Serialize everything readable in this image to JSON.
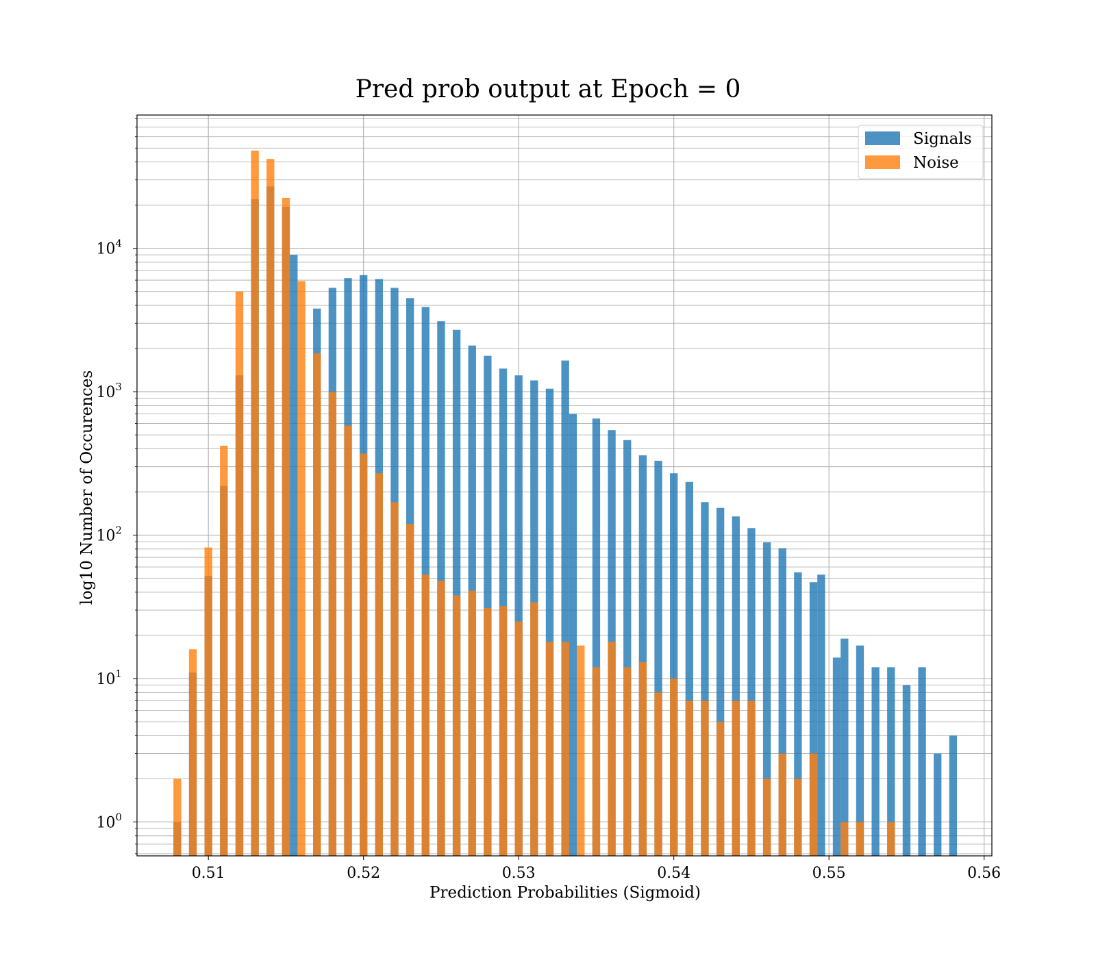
{
  "chart_data": {
    "type": "bar",
    "title": "Pred prob output at Epoch = 0",
    "xlabel": "Prediction Probabilities (Sigmoid)",
    "ylabel": "log10 Number of Occurences",
    "xlim": [
      0.5054,
      0.5605
    ],
    "ylim": [
      0.58,
      85000
    ],
    "yscale": "log",
    "grid": true,
    "grid_minor": true,
    "legend": "top-right",
    "bar_width": 0.0005,
    "xticks": [
      {
        "value": 0.51,
        "label": "0.51"
      },
      {
        "value": 0.52,
        "label": "0.52"
      },
      {
        "value": 0.53,
        "label": "0.53"
      },
      {
        "value": 0.54,
        "label": "0.54"
      },
      {
        "value": 0.55,
        "label": "0.55"
      },
      {
        "value": 0.56,
        "label": "0.56"
      }
    ],
    "yticks": [
      {
        "value": 1,
        "base": "10",
        "exp": "0"
      },
      {
        "value": 10,
        "base": "10",
        "exp": "1"
      },
      {
        "value": 100,
        "base": "10",
        "exp": "2"
      },
      {
        "value": 1000,
        "base": "10",
        "exp": "3"
      },
      {
        "value": 10000,
        "base": "10",
        "exp": "4"
      }
    ],
    "series": [
      {
        "name": "Signals",
        "color": "#1f77b4",
        "opacity": 0.8,
        "x": [
          0.508,
          0.509,
          0.51,
          0.511,
          0.512,
          0.513,
          0.514,
          0.515,
          0.5155,
          0.517,
          0.518,
          0.519,
          0.52,
          0.521,
          0.522,
          0.523,
          0.524,
          0.525,
          0.526,
          0.527,
          0.528,
          0.529,
          0.53,
          0.531,
          0.532,
          0.533,
          0.5335,
          0.535,
          0.536,
          0.537,
          0.538,
          0.539,
          0.54,
          0.541,
          0.542,
          0.543,
          0.544,
          0.545,
          0.546,
          0.547,
          0.548,
          0.549,
          0.5495,
          0.5505,
          0.551,
          0.552,
          0.553,
          0.554,
          0.555,
          0.556,
          0.557,
          0.558
        ],
        "values": [
          1,
          11,
          52,
          220,
          1300,
          22000,
          27000,
          19500,
          9000,
          3800,
          5300,
          6200,
          6500,
          6100,
          5300,
          4500,
          3900,
          3100,
          2700,
          2100,
          1780,
          1450,
          1300,
          1200,
          1050,
          1650,
          700,
          650,
          540,
          460,
          360,
          330,
          270,
          235,
          170,
          155,
          135,
          112,
          89,
          81,
          55,
          47,
          53,
          14,
          19,
          17,
          12,
          12,
          9,
          12,
          3,
          4
        ]
      },
      {
        "name": "Noise",
        "color": "#ff7f0e",
        "opacity": 0.8,
        "x": [
          0.508,
          0.509,
          0.51,
          0.511,
          0.512,
          0.513,
          0.514,
          0.515,
          0.516,
          0.517,
          0.518,
          0.519,
          0.52,
          0.521,
          0.522,
          0.523,
          0.524,
          0.525,
          0.526,
          0.527,
          0.528,
          0.529,
          0.53,
          0.531,
          0.532,
          0.533,
          0.534,
          0.535,
          0.536,
          0.537,
          0.538,
          0.539,
          0.54,
          0.541,
          0.542,
          0.543,
          0.544,
          0.545,
          0.546,
          0.547,
          0.548,
          0.549,
          0.551,
          0.552,
          0.554
        ],
        "values": [
          2,
          16,
          82,
          420,
          5000,
          48000,
          42000,
          22500,
          5900,
          1850,
          1000,
          580,
          370,
          270,
          170,
          120,
          53,
          48,
          38,
          41,
          31,
          32,
          25,
          34,
          18,
          18,
          17,
          12,
          18,
          12,
          13,
          8,
          10,
          7,
          7,
          5,
          7,
          7,
          2,
          3,
          2,
          3,
          1,
          1,
          1
        ]
      }
    ]
  }
}
